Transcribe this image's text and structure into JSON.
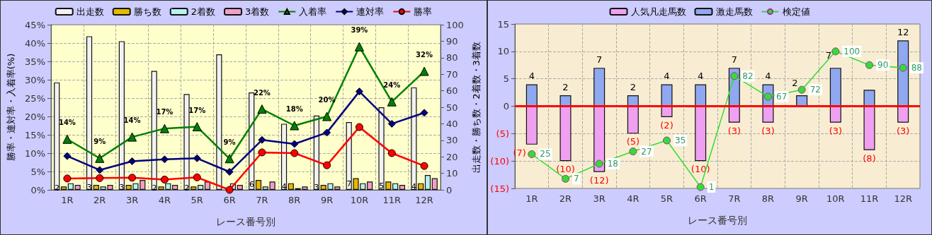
{
  "chart_data": [
    {
      "type": "bar",
      "xlabel": "レース番号別",
      "ylabel": "勝率・連対率・入着率(%)",
      "y2label": "出走数・勝ち数・2着数・3着数",
      "legend": "top",
      "grid": true,
      "categories": [
        "1R",
        "2R",
        "3R",
        "4R",
        "5R",
        "6R",
        "7R",
        "8R",
        "9R",
        "10R",
        "11R",
        "12R"
      ],
      "ylim": [
        0,
        45
      ],
      "yticks": [
        {
          "value": 0,
          "label": "0%"
        },
        {
          "value": 5,
          "label": "5%"
        },
        {
          "value": 10,
          "label": "10%"
        },
        {
          "value": 15,
          "label": "15%"
        },
        {
          "value": 20,
          "label": "20%"
        },
        {
          "value": 25,
          "label": "25%"
        },
        {
          "value": 30,
          "label": "30%"
        },
        {
          "value": 35,
          "label": "35%"
        },
        {
          "value": 40,
          "label": "40%"
        },
        {
          "value": 45,
          "label": "45%"
        }
      ],
      "y2lim": [
        0,
        100
      ],
      "y2ticks": [
        0,
        10,
        20,
        30,
        40,
        50,
        60,
        70,
        80,
        90,
        100
      ],
      "series": [
        {
          "name": "出走数",
          "axis": "y2",
          "color": "#f2f2f2",
          "values": [
            65,
            93,
            90,
            72,
            58,
            82,
            59,
            40,
            45,
            41,
            50,
            62
          ]
        },
        {
          "name": "勝ち数",
          "axis": "y2",
          "color": "#e6b800",
          "values": [
            2,
            3,
            3,
            2,
            2,
            0,
            6,
            4,
            3,
            7,
            5,
            4
          ],
          "value_labels": [
            "2",
            "3",
            "3",
            "2",
            "2",
            null,
            "6",
            "4",
            "3",
            "7",
            "5",
            "4"
          ]
        },
        {
          "name": "2着数",
          "axis": "y2",
          "color": "#b8f0f0",
          "values": [
            4,
            2,
            4,
            4,
            3,
            4,
            2,
            1,
            4,
            4,
            4,
            9
          ]
        },
        {
          "name": "3着数",
          "axis": "y2",
          "color": "#f0a0c8",
          "values": [
            3,
            3,
            6,
            3,
            5,
            3,
            5,
            2,
            2,
            5,
            3,
            7
          ]
        },
        {
          "name": "入着率",
          "type": "line",
          "marker": "triangle",
          "color": "#008000",
          "values": [
            13.8,
            8.6,
            14.4,
            16.7,
            17.2,
            8.5,
            22,
            17.5,
            20,
            39,
            24,
            32.3
          ],
          "value_labels": [
            "14%",
            "9%",
            "14%",
            "17%",
            "17%",
            "9%",
            "22%",
            "18%",
            "20%",
            "39%",
            "24%",
            "32%"
          ]
        },
        {
          "name": "連対率",
          "type": "line",
          "marker": "diamond",
          "color": "#000080",
          "values": [
            9.2,
            5.4,
            7.8,
            8.3,
            8.6,
            4.9,
            13.6,
            12.5,
            15.6,
            26.8,
            18,
            21
          ]
        },
        {
          "name": "勝率",
          "type": "line",
          "marker": "circle",
          "color": "#ff0000",
          "values": [
            3.1,
            3.2,
            3.3,
            2.8,
            3.4,
            0,
            10.2,
            10,
            6.7,
            17.1,
            10,
            6.5
          ]
        }
      ]
    },
    {
      "type": "bar",
      "xlabel": "レース番号別",
      "legend": "top",
      "grid": true,
      "stacked": true,
      "categories": [
        "1R",
        "2R",
        "3R",
        "4R",
        "5R",
        "6R",
        "7R",
        "8R",
        "9R",
        "10R",
        "11R",
        "12R"
      ],
      "ylim": [
        -15,
        15
      ],
      "yticks": [
        {
          "value": -15,
          "label": "(15)"
        },
        {
          "value": -10,
          "label": "(10)"
        },
        {
          "value": -5,
          "label": "(5)"
        },
        0,
        5,
        10,
        15
      ],
      "y2lim": [
        0,
        120
      ],
      "ref_lines": [
        {
          "axis": "y",
          "value": 0,
          "color": "#ff0000"
        }
      ],
      "series": [
        {
          "name": "人気凡走馬数",
          "color": "#f0a0f0",
          "values": [
            -7,
            -10,
            -12,
            -5,
            -2,
            -10,
            -3,
            -3,
            0,
            -3,
            -8,
            -3
          ],
          "value_labels": [
            "(7)",
            "(10)",
            "(12)",
            "(5)",
            "(2)",
            "(10)",
            "(3)",
            "(3)",
            null,
            "(3)",
            "(8)",
            "(3)"
          ]
        },
        {
          "name": "激走馬数",
          "color": "#90a8f0",
          "values": [
            4,
            2,
            7,
            2,
            4,
            4,
            7,
            4,
            2,
            7,
            3,
            12
          ],
          "value_labels": [
            "4",
            "2",
            "7",
            "2",
            "4",
            "4",
            "7",
            "4",
            "2",
            "7",
            null,
            "12"
          ]
        },
        {
          "name": "検定値",
          "type": "line",
          "axis": "y2",
          "marker": "circle",
          "color": "#33dd33",
          "values": [
            25,
            7,
            18,
            27,
            35,
            1,
            82,
            67,
            72,
            100,
            90,
            88
          ],
          "value_labels": [
            "25",
            "7",
            "18",
            "27",
            "35",
            "1",
            "82",
            "67",
            "72",
            "100",
            "90",
            "88"
          ]
        }
      ]
    }
  ]
}
